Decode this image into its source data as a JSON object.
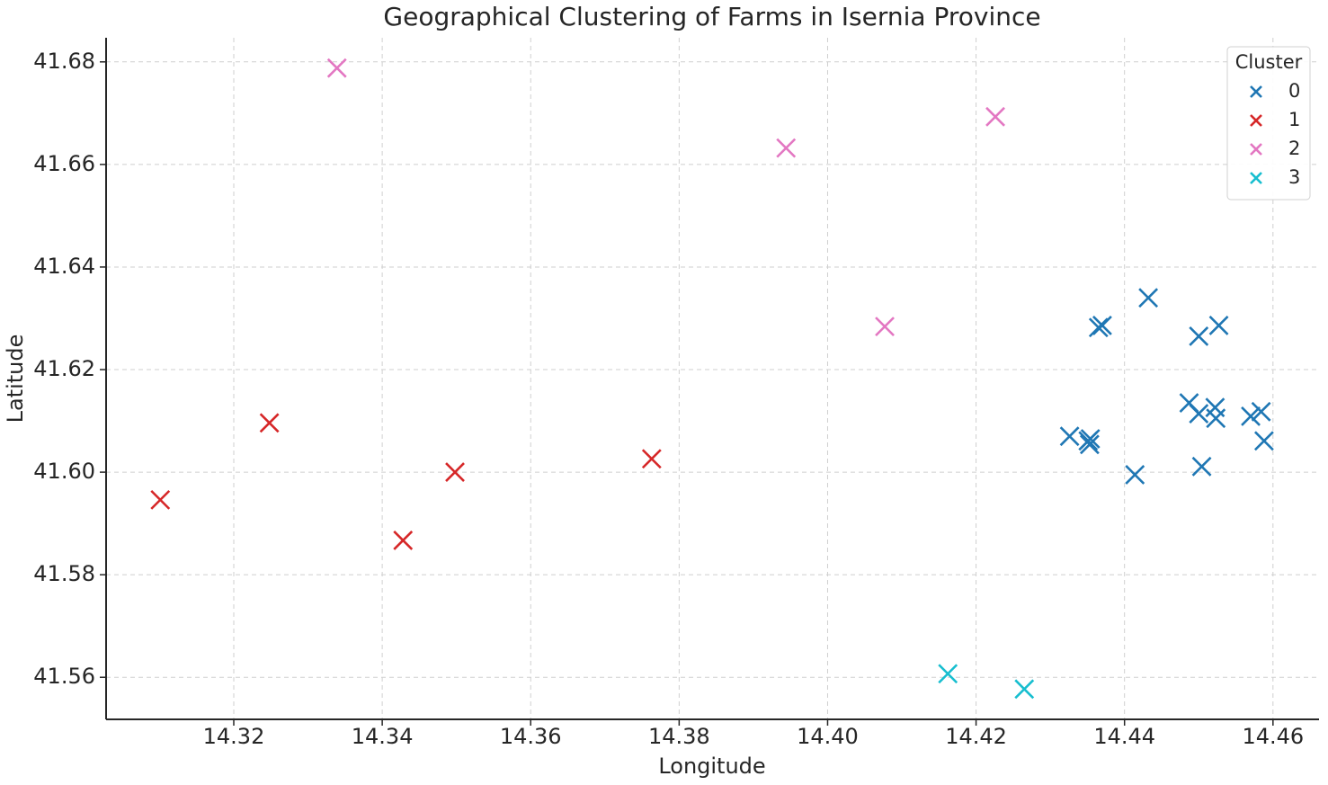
{
  "chart_data": {
    "type": "scatter",
    "title": "Geographical Clustering of Farms in Isernia Province",
    "x_label": "Longitude",
    "y_label": "Latitude",
    "legend_title": "Cluster",
    "legend_position": "upper right",
    "grid": true,
    "marker": "x",
    "xlim": [
      14.3028,
      14.4662
    ],
    "ylim": [
      41.5518,
      41.6847
    ],
    "xticks": [
      {
        "value": 14.32,
        "label": "14.32"
      },
      {
        "value": 14.34,
        "label": "14.34"
      },
      {
        "value": 14.36,
        "label": "14.36"
      },
      {
        "value": 14.38,
        "label": "14.38"
      },
      {
        "value": 14.4,
        "label": "14.40"
      },
      {
        "value": 14.42,
        "label": "14.42"
      },
      {
        "value": 14.44,
        "label": "14.44"
      },
      {
        "value": 14.46,
        "label": "14.46"
      }
    ],
    "yticks": [
      {
        "value": 41.56,
        "label": "41.56"
      },
      {
        "value": 41.58,
        "label": "41.58"
      },
      {
        "value": 41.6,
        "label": "41.60"
      },
      {
        "value": 41.62,
        "label": "41.62"
      },
      {
        "value": 41.64,
        "label": "41.64"
      },
      {
        "value": 41.66,
        "label": "41.66"
      },
      {
        "value": 41.68,
        "label": "41.68"
      }
    ],
    "series": [
      {
        "name": "0",
        "color": "#1f77b4",
        "x": [
          14.4432,
          14.4365,
          14.437,
          14.45,
          14.4527,
          14.4487,
          14.45,
          14.4522,
          14.4523,
          14.457,
          14.4584,
          14.4588,
          14.4504,
          14.4414,
          14.4326,
          14.4351,
          14.4353,
          14.4354
        ],
        "values": [
          41.634,
          41.6282,
          41.6286,
          41.6265,
          41.6286,
          41.6135,
          41.6114,
          41.6126,
          41.6105,
          41.6109,
          41.6118,
          41.6061,
          41.6011,
          41.5995,
          41.607,
          41.6061,
          41.6054,
          41.6065
        ]
      },
      {
        "name": "1",
        "color": "#d62728",
        "x": [
          14.3101,
          14.3248,
          14.3428,
          14.3498,
          14.3763
        ],
        "values": [
          41.5946,
          41.6096,
          41.5867,
          41.6,
          41.6026
        ]
      },
      {
        "name": "2",
        "color": "#e377c2",
        "x": [
          14.3339,
          14.3944,
          14.4226,
          14.4077
        ],
        "values": [
          41.6788,
          41.6632,
          41.6693,
          41.6284
        ]
      },
      {
        "name": "3",
        "color": "#17becf",
        "x": [
          14.4162,
          14.4265
        ],
        "values": [
          41.5607,
          41.5577
        ]
      }
    ]
  }
}
